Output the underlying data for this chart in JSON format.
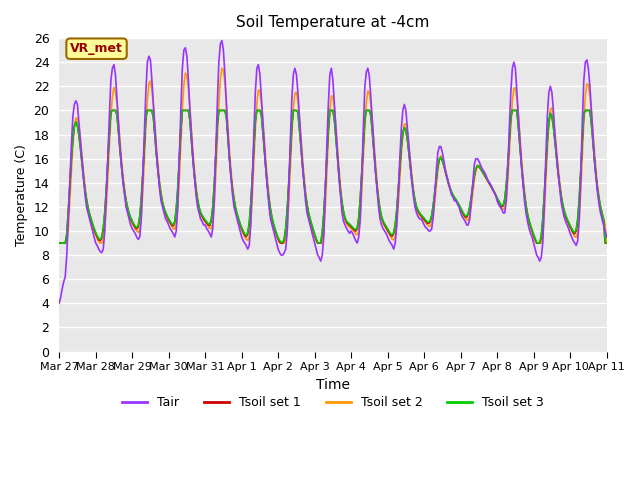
{
  "title": "Soil Temperature at -4cm",
  "xlabel": "Time",
  "ylabel": "Temperature (C)",
  "ylim": [
    0,
    26
  ],
  "yticks": [
    0,
    2,
    4,
    6,
    8,
    10,
    12,
    14,
    16,
    18,
    20,
    22,
    24,
    26
  ],
  "date_labels": [
    "Mar 27",
    "Mar 28",
    "Mar 29",
    "Mar 30",
    "Mar 31",
    "Apr 1",
    "Apr 2",
    "Apr 3",
    "Apr 4",
    "Apr 5",
    "Apr 6",
    "Apr 7",
    "Apr 8",
    "Apr 9",
    "Apr 10",
    "Apr 11"
  ],
  "color_tair": "#9933FF",
  "color_tsoil1": "#CC0000",
  "color_tsoil2": "#FF9900",
  "color_tsoil3": "#00CC00",
  "annotation_text": "VR_met",
  "annotation_bg": "#FFFF99",
  "annotation_edge": "#996600",
  "annotation_text_color": "#990000",
  "legend_labels": [
    "Tair",
    "Tsoil set 1",
    "Tsoil set 2",
    "Tsoil set 3"
  ],
  "bg_color": "#E8E8E8",
  "grid_color": "#FFFFFF",
  "linewidth": 1.2
}
